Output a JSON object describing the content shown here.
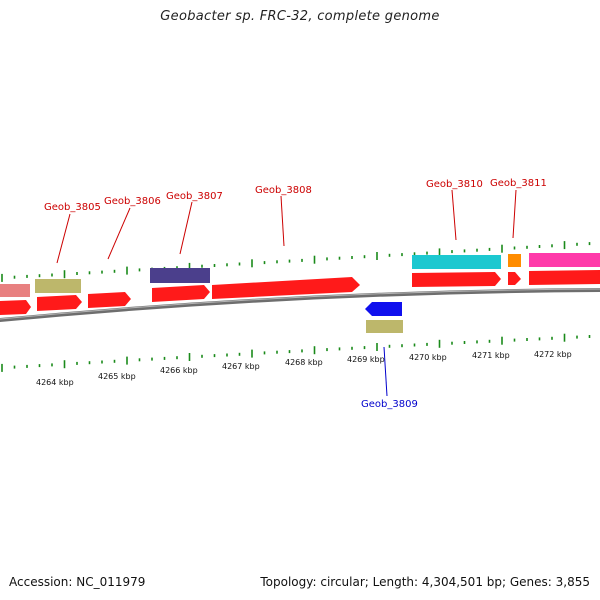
{
  "title": "Geobacter sp. FRC-32, complete genome",
  "footer": {
    "accession": "Accession: NC_011979",
    "topology": "Topology: circular; Length: 4,304,501 bp; Genes: 3,855"
  },
  "colors": {
    "forward_cds": "#ff1a1a",
    "reverse_cds": "#1010ee",
    "forward_label": "#cc0000",
    "reverse_label": "#0000cc",
    "tick": "#1a8a1a",
    "backbone": "#7a7a7a"
  },
  "gene_labels": [
    {
      "id": "Geob_3805",
      "strand": "forward"
    },
    {
      "id": "Geob_3806",
      "strand": "forward"
    },
    {
      "id": "Geob_3807",
      "strand": "forward"
    },
    {
      "id": "Geob_3808",
      "strand": "forward"
    },
    {
      "id": "Geob_3810",
      "strand": "forward"
    },
    {
      "id": "Geob_3811",
      "strand": "forward"
    },
    {
      "id": "Geob_3809",
      "strand": "reverse"
    }
  ],
  "kbp_labels": [
    "4264 kbp",
    "4265 kbp",
    "4266 kbp",
    "4267 kbp",
    "4268 kbp",
    "4269 kbp",
    "4270 kbp",
    "4271 kbp",
    "4272 kbp"
  ]
}
